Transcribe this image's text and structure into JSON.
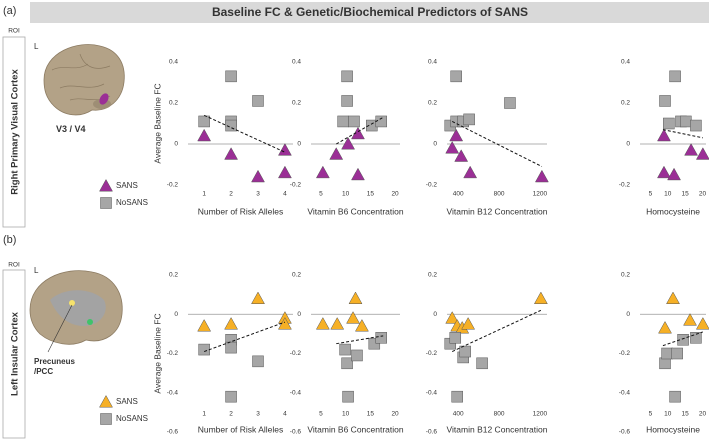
{
  "title": "Baseline FC & Genetic/Biochemical Predictors of SANS",
  "rows": [
    {
      "tag": "(a)",
      "roi": "ROI",
      "region": "Right Primary Visual Cortex",
      "hemisphere": "L",
      "roi_label": [
        "V3 / V4"
      ],
      "roi_color": "#8e2a8c"
    },
    {
      "tag": "(b)",
      "roi": "ROI",
      "region": "Left Insular Cortex",
      "hemisphere": "L",
      "roi_label": [
        "Precuneus",
        "/PCC"
      ],
      "roi_color": "#f29a1d"
    }
  ],
  "chart_data": [
    {
      "type": "scatter",
      "x_label": "Number of Risk Alleles",
      "y_label": "Average Baseline FC",
      "xlim": [
        0.4,
        4.3
      ],
      "ylim": [
        -0.2,
        0.4
      ],
      "xticks": [
        1,
        2,
        3,
        4
      ],
      "yticks": [
        0.4,
        0.2,
        0,
        -0.2
      ],
      "zero_line": true,
      "series": [
        {
          "name": "SANS",
          "color": "#9b2f96",
          "marker": "triangle",
          "x": [
            1,
            2,
            3,
            4,
            4
          ],
          "values": [
            0.04,
            -0.05,
            -0.16,
            -0.03,
            -0.14
          ]
        },
        {
          "name": "NoSANS",
          "color": "#a6a6a6",
          "marker": "square",
          "x": [
            1,
            2,
            2,
            2,
            3
          ],
          "values": [
            0.11,
            0.33,
            0.11,
            0.09,
            0.21
          ]
        }
      ],
      "trend": {
        "x": [
          1,
          4
        ],
        "y": [
          0.14,
          -0.04
        ]
      }
    },
    {
      "type": "scatter",
      "x_label": "Vitamin B6 Concentration",
      "xlim": [
        3,
        21
      ],
      "ylim": [
        -0.2,
        0.4
      ],
      "xticks": [
        5,
        10,
        15,
        20
      ],
      "yticks": [
        0.4,
        0.2,
        0,
        -0.2
      ],
      "zero_line": true,
      "series": [
        {
          "name": "SANS",
          "color": "#9b2f96",
          "marker": "triangle",
          "x": [
            5.4,
            8.1,
            10.5,
            12.5,
            12.5
          ],
          "values": [
            -0.14,
            -0.05,
            0,
            0.05,
            -0.15
          ]
        },
        {
          "name": "NoSANS",
          "color": "#a6a6a6",
          "marker": "square",
          "x": [
            10.3,
            10.3,
            9.5,
            11.7,
            15.3,
            17.2
          ],
          "values": [
            0.33,
            0.21,
            0.11,
            0.11,
            0.09,
            0.11
          ]
        }
      ],
      "trend": {
        "x": [
          8.1,
          17.6
        ],
        "y": [
          0,
          0.13
        ]
      }
    },
    {
      "type": "scatter",
      "x_label": "Vitamin B12 Concentration",
      "xlim": [
        290,
        1270
      ],
      "ylim": [
        -0.2,
        0.4
      ],
      "xticks": [
        400,
        800,
        1200
      ],
      "yticks": [
        0.4,
        0.2,
        0,
        -0.2
      ],
      "zero_line": true,
      "series": [
        {
          "name": "SANS",
          "color": "#9b2f96",
          "marker": "triangle",
          "x": [
            341,
            380,
            429,
            517,
            1220
          ],
          "values": [
            -0.02,
            0.04,
            -0.06,
            -0.14,
            -0.16
          ]
        },
        {
          "name": "NoSANS",
          "color": "#a6a6a6",
          "marker": "square",
          "x": [
            322,
            380,
            380,
            449,
            507,
            907
          ],
          "values": [
            0.09,
            0.33,
            0.11,
            0.11,
            0.12,
            0.2
          ]
        }
      ],
      "trend": {
        "x": [
          341,
          1220
        ],
        "y": [
          0.11,
          -0.11
        ]
      }
    },
    {
      "type": "scatter",
      "x_label": "Homocysteine",
      "xlim": [
        2,
        21
      ],
      "ylim": [
        -0.2,
        0.4
      ],
      "xticks": [
        5,
        10,
        15,
        20
      ],
      "yticks": [
        0.4,
        0.2,
        0,
        -0.2
      ],
      "zero_line": true,
      "series": [
        {
          "name": "SANS",
          "color": "#9b2f96",
          "marker": "triangle",
          "x": [
            8.9,
            8.9,
            11.8,
            16.7,
            20.1
          ],
          "values": [
            0.04,
            -0.14,
            -0.15,
            -0.03,
            -0.05
          ]
        },
        {
          "name": "NoSANS",
          "color": "#a6a6a6",
          "marker": "square",
          "x": [
            9.2,
            12.1,
            10.3,
            13.8,
            15.2,
            18.1
          ],
          "values": [
            0.21,
            0.33,
            0.1,
            0.11,
            0.11,
            0.09
          ]
        }
      ],
      "trend": {
        "x": [
          8.6,
          20.1
        ],
        "y": [
          0.07,
          0.03
        ]
      }
    },
    {
      "type": "scatter",
      "x_label": "Number of Risk Alleles",
      "y_label": "Average Baseline FC",
      "xlim": [
        0.4,
        4.3
      ],
      "ylim": [
        -0.6,
        0.2
      ],
      "xticks": [
        1,
        2,
        3,
        4
      ],
      "yticks": [
        0.2,
        0,
        -0.2,
        -0.4,
        -0.6
      ],
      "zero_line": true,
      "series": [
        {
          "name": "SANS",
          "color": "#f6b026",
          "marker": "triangle",
          "x": [
            1,
            2,
            3,
            4,
            4
          ],
          "values": [
            -0.06,
            -0.05,
            0.08,
            -0.02,
            -0.05
          ]
        },
        {
          "name": "NoSANS",
          "color": "#a6a6a6",
          "marker": "square",
          "x": [
            1,
            2,
            2,
            2,
            3
          ],
          "values": [
            -0.18,
            -0.13,
            -0.17,
            -0.42,
            -0.24
          ]
        }
      ],
      "trend": {
        "x": [
          1,
          4
        ],
        "y": [
          -0.19,
          -0.04
        ]
      }
    },
    {
      "type": "scatter",
      "x_label": "Vitamin B6 Concentration",
      "xlim": [
        3,
        21
      ],
      "ylim": [
        -0.6,
        0.2
      ],
      "xticks": [
        5,
        10,
        15,
        20
      ],
      "yticks": [
        0.2,
        0,
        -0.2,
        -0.4,
        -0.6
      ],
      "zero_line": true,
      "series": [
        {
          "name": "SANS",
          "color": "#f6b026",
          "marker": "triangle",
          "x": [
            5.4,
            8.3,
            12,
            11.5,
            13.3
          ],
          "values": [
            -0.05,
            -0.05,
            0.08,
            -0.02,
            -0.06
          ]
        },
        {
          "name": "NoSANS",
          "color": "#a6a6a6",
          "marker": "square",
          "x": [
            9.9,
            10.3,
            10.5,
            12.3,
            15.8,
            17.2
          ],
          "values": [
            -0.18,
            -0.25,
            -0.42,
            -0.21,
            -0.15,
            -0.12
          ]
        }
      ],
      "trend": {
        "x": [
          8.1,
          17.6
        ],
        "y": [
          -0.15,
          -0.11
        ]
      }
    },
    {
      "type": "scatter",
      "x_label": "Vitamin B12 Concentration",
      "xlim": [
        290,
        1270
      ],
      "ylim": [
        -0.6,
        0.2
      ],
      "xticks": [
        400,
        800,
        1200
      ],
      "yticks": [
        0.2,
        0,
        -0.2,
        -0.4,
        -0.6
      ],
      "zero_line": true,
      "series": [
        {
          "name": "SANS",
          "color": "#f6b026",
          "marker": "triangle",
          "x": [
            341,
            390,
            439,
            497,
            1210
          ],
          "values": [
            -0.02,
            -0.06,
            -0.07,
            -0.05,
            0.08
          ]
        },
        {
          "name": "NoSANS",
          "color": "#a6a6a6",
          "marker": "square",
          "x": [
            322,
            371,
            390,
            449,
            468,
            634
          ],
          "values": [
            -0.15,
            -0.12,
            -0.42,
            -0.22,
            -0.19,
            -0.25
          ]
        }
      ],
      "trend": {
        "x": [
          341,
          1210
        ],
        "y": [
          -0.19,
          0.02
        ]
      }
    },
    {
      "type": "scatter",
      "x_label": "Homocysteine",
      "xlim": [
        2,
        21
      ],
      "ylim": [
        -0.6,
        0.2
      ],
      "xticks": [
        5,
        10,
        15,
        20
      ],
      "yticks": [
        0.2,
        0,
        -0.2,
        -0.4,
        -0.6
      ],
      "zero_line": true,
      "series": [
        {
          "name": "SANS",
          "color": "#f6b026",
          "marker": "triangle",
          "x": [
            9.2,
            11.5,
            16.4,
            20.1
          ],
          "values": [
            -0.07,
            0.08,
            -0.03,
            -0.05
          ]
        },
        {
          "name": "NoSANS",
          "color": "#a6a6a6",
          "marker": "square",
          "x": [
            9.2,
            9.8,
            12.7,
            14.4,
            18.1,
            12.1
          ],
          "values": [
            -0.25,
            -0.2,
            -0.2,
            -0.13,
            -0.12,
            -0.42
          ]
        }
      ],
      "trend": {
        "x": [
          8.6,
          20.1
        ],
        "y": [
          -0.16,
          -0.09
        ]
      }
    }
  ]
}
